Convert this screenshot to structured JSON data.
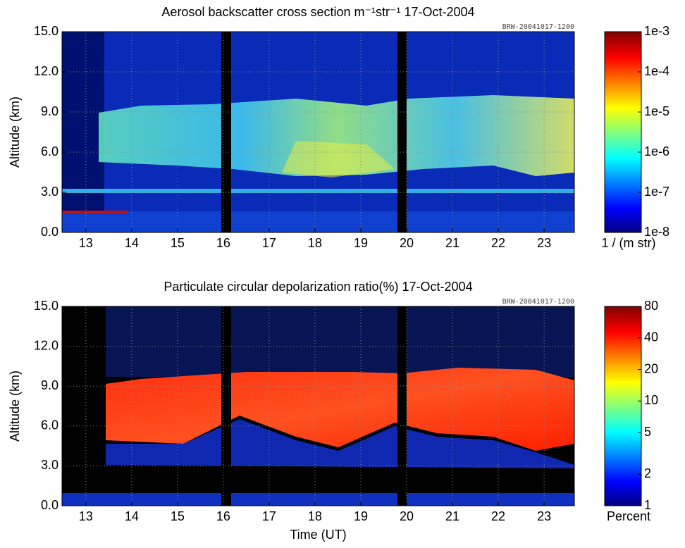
{
  "chart_data": [
    {
      "type": "heatmap",
      "title": "Aerosol backscatter cross section m⁻¹str⁻¹  17-Oct-2004",
      "subtitle": "BRW-20041017-1200",
      "ylabel": "Altitude (km)",
      "xlim": [
        12.48,
        23.66
      ],
      "xticks": [
        13,
        14,
        15,
        16,
        17,
        18,
        19,
        20,
        21,
        22,
        23
      ],
      "ylim": [
        0,
        15
      ],
      "yticks": [
        {
          "value": 0,
          "label": "0.0"
        },
        {
          "value": 3,
          "label": "3.0"
        },
        {
          "value": 6,
          "label": "6.0"
        },
        {
          "value": 9,
          "label": "9.0"
        },
        {
          "value": 12,
          "label": "12.0"
        },
        {
          "value": 15,
          "label": "15.0"
        }
      ],
      "grid": true,
      "colorbar": {
        "label": "1 / (m str)",
        "log": true,
        "lim": [
          1e-08,
          0.001
        ],
        "ticks": [
          {
            "value": 1e-08,
            "label": "1e-8"
          },
          {
            "value": 1e-07,
            "label": "1e-7"
          },
          {
            "value": 1e-06,
            "label": "1e-6"
          },
          {
            "value": 1e-05,
            "label": "1e-5"
          },
          {
            "value": 0.0001,
            "label": "1e-4"
          },
          {
            "value": 0.001,
            "label": "1e-3"
          }
        ]
      }
    },
    {
      "type": "heatmap",
      "title": "Particulate circular depolarization ratio(%)  17-Oct-2004",
      "subtitle": "BRW-20041017-1200",
      "xlabel": "Time (UT)",
      "ylabel": "Altitude (km)",
      "xlim": [
        12.48,
        23.66
      ],
      "xticks": [
        13,
        14,
        15,
        16,
        17,
        18,
        19,
        20,
        21,
        22,
        23
      ],
      "ylim": [
        0,
        15
      ],
      "yticks": [
        {
          "value": 0,
          "label": "0.0"
        },
        {
          "value": 3,
          "label": "3.0"
        },
        {
          "value": 6,
          "label": "6.0"
        },
        {
          "value": 9,
          "label": "9.0"
        },
        {
          "value": 12,
          "label": "12.0"
        },
        {
          "value": 15,
          "label": "15.0"
        }
      ],
      "grid": true,
      "colorbar": {
        "label": "Percent",
        "log": true,
        "lim": [
          1,
          80
        ],
        "ticks": [
          1,
          2,
          5,
          10,
          20,
          40,
          80
        ]
      }
    }
  ]
}
